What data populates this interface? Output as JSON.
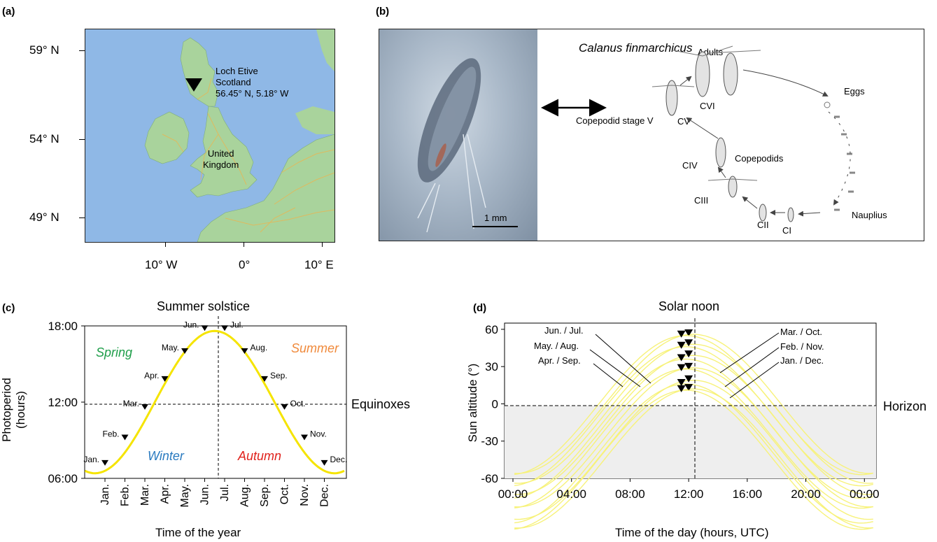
{
  "panels": {
    "a": {
      "label": "(a)",
      "lat_ticks": [
        "59° N",
        "54° N",
        "49° N"
      ],
      "lon_ticks": [
        "10° W",
        "0°",
        "10° E"
      ],
      "site_lines": [
        "Loch Etive",
        "Scotland",
        "56.45° N, 5.18° W"
      ],
      "country_lines": [
        "United",
        "Kingdom"
      ]
    },
    "b": {
      "label": "(b)",
      "species": "Calanus finmarchicus",
      "scale_bar": "1 mm",
      "arrow_label": "Copepodid stage V",
      "stages": {
        "adults": "Adults",
        "eggs": "Eggs",
        "cvi": "CVI",
        "cv": "CV",
        "copepodids": "Copepodids",
        "civ": "CIV",
        "ciii": "CIII",
        "cii": "CII",
        "ci": "CI",
        "nauplius": "Nauplius"
      }
    },
    "c": {
      "label": "(c)",
      "top_annotation": "Summer solstice",
      "right_annotation": "Equinoxes",
      "ylabel": "Photoperiod (hours)",
      "xlabel": "Time of the year",
      "seasons": [
        {
          "name": "Spring",
          "color": "#1f9e4a"
        },
        {
          "name": "Summer",
          "color": "#f08a3c"
        },
        {
          "name": "Winter",
          "color": "#2b7bc0"
        },
        {
          "name": "Autumn",
          "color": "#e0221c"
        }
      ]
    },
    "d": {
      "label": "(d)",
      "top_annotation": "Solar noon",
      "right_annotation": "Horizon",
      "ylabel": "Sun altitude (°)",
      "xlabel": "Time of the day (hours, UTC)",
      "left_labels": [
        "Jun. / Jul.",
        "May. / Aug.",
        "Apr. / Sep."
      ],
      "right_labels": [
        "Mar. / Oct.",
        "Feb. / Nov.",
        "Jan. / Dec."
      ]
    }
  },
  "chart_data": [
    {
      "type": "line",
      "panel": "c",
      "xlabel": "Time of the year",
      "ylabel": "Photoperiod (hours)",
      "categories": [
        "Jan.",
        "Feb.",
        "Mar.",
        "Apr.",
        "May.",
        "Jun.",
        "Jul.",
        "Aug.",
        "Sep.",
        "Oct.",
        "Nov.",
        "Dec."
      ],
      "marker_values_hours": [
        7.0,
        9.0,
        11.4,
        13.6,
        15.8,
        17.6,
        17.6,
        15.8,
        13.6,
        11.4,
        9.0,
        7.0
      ],
      "y_ticks": [
        "06:00",
        "12:00",
        "18:00"
      ],
      "ylim": [
        6,
        18
      ],
      "line_color": "#f5e400"
    },
    {
      "type": "line",
      "panel": "d",
      "xlabel": "Time of the day (hours, UTC)",
      "ylabel": "Sun altitude (°)",
      "x_ticks": [
        "00:00",
        "04:00",
        "08:00",
        "12:00",
        "16:00",
        "20:00",
        "00:00"
      ],
      "y_ticks": [
        "60",
        "30",
        "0",
        "-30",
        "-60"
      ],
      "ylim": [
        -60,
        65
      ],
      "xlim": [
        0,
        24
      ],
      "series": [
        {
          "max_altitude": 56
        },
        {
          "max_altitude": 55
        },
        {
          "max_altitude": 48
        },
        {
          "max_altitude": 46
        },
        {
          "max_altitude": 39
        },
        {
          "max_altitude": 36
        },
        {
          "max_altitude": 29
        },
        {
          "max_altitude": 28
        },
        {
          "max_altitude": 19
        },
        {
          "max_altitude": 16
        },
        {
          "max_altitude": 12
        },
        {
          "max_altitude": 11
        }
      ],
      "line_color": "#f7f27a"
    }
  ]
}
